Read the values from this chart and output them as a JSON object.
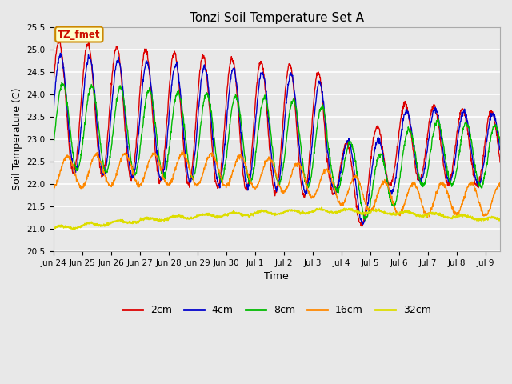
{
  "title": "Tonzi Soil Temperature Set A",
  "xlabel": "Time",
  "ylabel": "Soil Temperature (C)",
  "ylim": [
    20.5,
    25.5
  ],
  "xlim": [
    0,
    15.5
  ],
  "fig_bg": "#e8e8e8",
  "plot_bg": "#e8e8e8",
  "colors": {
    "2cm": "#dd0000",
    "4cm": "#0000cc",
    "8cm": "#00bb00",
    "16cm": "#ff8800",
    "32cm": "#dddd00"
  },
  "annotation_text": "TZ_fmet",
  "annotation_bg": "#ffffcc",
  "annotation_border": "#cc8800",
  "x_tick_labels": [
    "Jun 24",
    "Jun 25",
    "Jun 26",
    "Jun 27",
    "Jun 28",
    "Jun 29",
    "Jun 30",
    "Jul 1",
    "Jul 2",
    "Jul 3",
    "Jul 4",
    "Jul 5",
    "Jul 6",
    "Jul 7",
    "Jul 8",
    "Jul 9"
  ],
  "yticks": [
    20.5,
    21.0,
    21.5,
    22.0,
    22.5,
    23.0,
    23.5,
    24.0,
    24.5,
    25.0,
    25.5
  ]
}
